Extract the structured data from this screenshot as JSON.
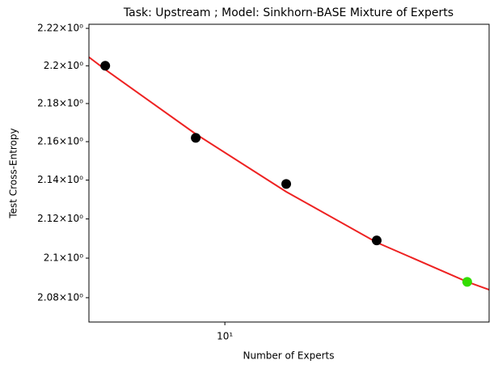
{
  "chart_data": {
    "type": "scatter",
    "title": "Task: Upstream ; Model: Sinkhorn-BASE Mixture of Experts",
    "x_label": "Number of Experts",
    "y_label": "Test Cross-Entropy",
    "xscale": "log",
    "yscale": "log",
    "xlim": [
      3.53,
      75.7
    ],
    "ylim": [
      2.0678,
      2.2222
    ],
    "xticks": [
      {
        "value": 10,
        "label": "10¹"
      }
    ],
    "yticks": [
      {
        "value": 2.08,
        "label": "2.08×10⁰"
      },
      {
        "value": 2.1,
        "label": "2.1×10⁰"
      },
      {
        "value": 2.12,
        "label": "2.12×10⁰"
      },
      {
        "value": 2.14,
        "label": "2.14×10⁰"
      },
      {
        "value": 2.16,
        "label": "2.16×10⁰"
      },
      {
        "value": 2.18,
        "label": "2.18×10⁰"
      },
      {
        "value": 2.2,
        "label": "2.2×10⁰"
      },
      {
        "value": 2.22,
        "label": "2.22×10⁰"
      }
    ],
    "series": [
      {
        "kind": "line",
        "color": "#ee2222",
        "x": [
          3.53,
          4,
          8,
          16,
          32,
          64,
          75.7
        ],
        "values": [
          2.2046,
          2.198,
          2.164,
          2.134,
          2.108,
          2.088,
          2.084
        ]
      },
      {
        "kind": "points",
        "color": "#000000",
        "x": [
          4,
          8,
          16,
          32
        ],
        "values": [
          2.2,
          2.162,
          2.138,
          2.109
        ]
      },
      {
        "kind": "points",
        "color": "#33dd00",
        "x": [
          64
        ],
        "values": [
          2.088
        ]
      }
    ]
  }
}
